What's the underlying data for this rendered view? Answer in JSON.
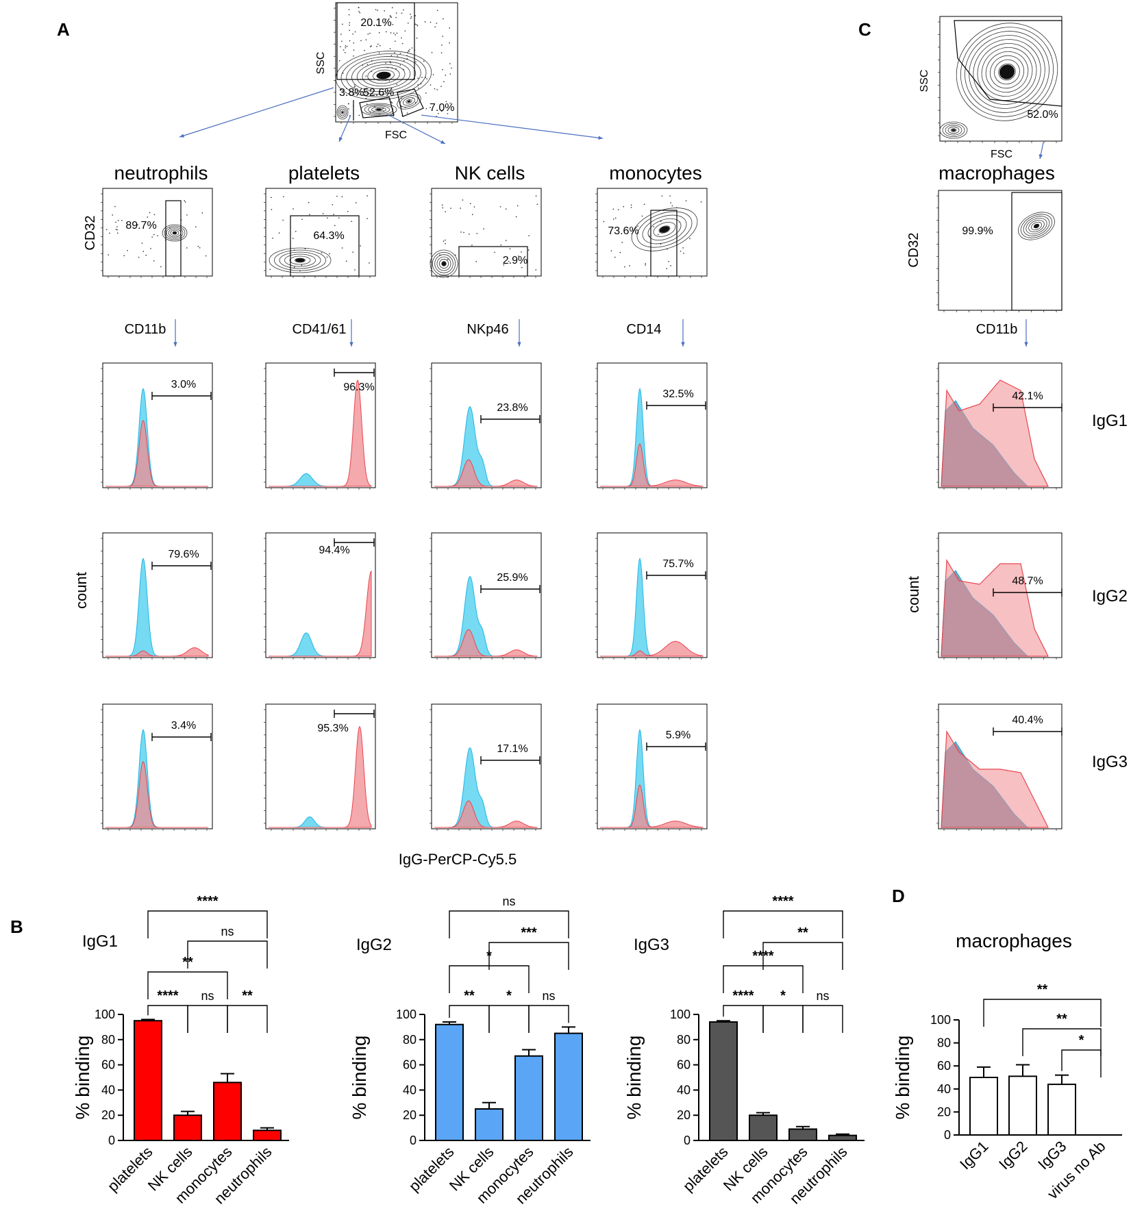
{
  "panel_letters": [
    "A",
    "B",
    "C",
    "D"
  ],
  "colors": {
    "control": "#5ed3f0",
    "sample": "#f08c92",
    "overlap": "#7a8fa8",
    "arrow": "#4a6fc1",
    "igg1_bar": "#ff0000",
    "igg2_bar": "#5aa5f5",
    "igg3_bar": "#555555"
  },
  "panelA": {
    "gate_plot": {
      "xlabel": "FSC",
      "ylabel": "SSC",
      "gates": [
        "20.1%",
        "3.8%",
        "52.6%",
        "7.0%"
      ]
    },
    "populations": [
      {
        "name": "neutrophils",
        "marker": "CD11b",
        "ylabel": "CD32",
        "gate": "89.7%",
        "hist": [
          "3.0%",
          "79.6%",
          "3.4%"
        ]
      },
      {
        "name": "platelets",
        "marker": "CD41/61",
        "ylabel": "",
        "gate": "64.3%",
        "hist": [
          "96.3%",
          "94.4%",
          "95.3%"
        ]
      },
      {
        "name": "NK cells",
        "marker": "NKp46",
        "ylabel": "",
        "gate": "2.9%",
        "hist": [
          "23.8%",
          "25.9%",
          "17.1%"
        ]
      },
      {
        "name": "monocytes",
        "marker": "CD14",
        "ylabel": "",
        "gate": "73.6%",
        "hist": [
          "32.5%",
          "75.7%",
          "5.9%"
        ]
      }
    ],
    "count_label": "count",
    "xaxis_label": "IgG-PerCP-Cy5.5"
  },
  "panelC": {
    "gate_plot": {
      "xlabel": "FSC",
      "ylabel": "SSC",
      "gate": "52.0%"
    },
    "population": {
      "name": "macrophages",
      "marker": "CD11b",
      "ylabel": "CD32",
      "gate": "99.9%",
      "hist": [
        "42.1%",
        "48.7%",
        "40.4%"
      ]
    },
    "count_label": "count",
    "isotypes": [
      "IgG1",
      "IgG2",
      "IgG3"
    ]
  },
  "chart_data": [
    {
      "type": "bar",
      "title": "IgG1",
      "ylabel": "% binding",
      "ylim": [
        0,
        100
      ],
      "yticks": [
        "0",
        "20",
        "40",
        "60",
        "80",
        "100"
      ],
      "categories": [
        "platelets",
        "NK cells",
        "monocytes",
        "neutrophils"
      ],
      "values": [
        95,
        20,
        46,
        8
      ],
      "errors": [
        1,
        3,
        7,
        2
      ],
      "comparisons": [
        {
          "a": 0,
          "b": 1,
          "label": "****"
        },
        {
          "a": 1,
          "b": 2,
          "label": "ns"
        },
        {
          "a": 2,
          "b": 3,
          "label": "**"
        },
        {
          "a": 0,
          "b": 2,
          "label": "**"
        },
        {
          "a": 1,
          "b": 3,
          "label": "ns"
        },
        {
          "a": 0,
          "b": 3,
          "label": "****"
        }
      ]
    },
    {
      "type": "bar",
      "title": "IgG2",
      "ylabel": "% binding",
      "ylim": [
        0,
        100
      ],
      "yticks": [
        "0",
        "20",
        "40",
        "60",
        "80",
        "100"
      ],
      "categories": [
        "platelets",
        "NK cells",
        "monocytes",
        "neutrophils"
      ],
      "values": [
        92,
        25,
        67,
        85
      ],
      "errors": [
        2,
        5,
        5,
        5
      ],
      "comparisons": [
        {
          "a": 0,
          "b": 1,
          "label": "**"
        },
        {
          "a": 1,
          "b": 2,
          "label": "*"
        },
        {
          "a": 2,
          "b": 3,
          "label": "ns"
        },
        {
          "a": 0,
          "b": 2,
          "label": "*"
        },
        {
          "a": 1,
          "b": 3,
          "label": "***"
        },
        {
          "a": 0,
          "b": 3,
          "label": "ns"
        }
      ]
    },
    {
      "type": "bar",
      "title": "IgG3",
      "ylabel": "% binding",
      "ylim": [
        0,
        100
      ],
      "yticks": [
        "0",
        "20",
        "40",
        "60",
        "80",
        "100"
      ],
      "categories": [
        "platelets",
        "NK cells",
        "monocytes",
        "neutrophils"
      ],
      "values": [
        94,
        20,
        9,
        4
      ],
      "errors": [
        1,
        2,
        2,
        1
      ],
      "comparisons": [
        {
          "a": 0,
          "b": 1,
          "label": "****"
        },
        {
          "a": 1,
          "b": 2,
          "label": "*"
        },
        {
          "a": 2,
          "b": 3,
          "label": "ns"
        },
        {
          "a": 0,
          "b": 2,
          "label": "****"
        },
        {
          "a": 1,
          "b": 3,
          "label": "**"
        },
        {
          "a": 0,
          "b": 3,
          "label": "****"
        }
      ]
    },
    {
      "type": "bar",
      "title": "macrophages",
      "ylabel": "% binding",
      "ylim": [
        0,
        100
      ],
      "yticks": [
        "0",
        "20",
        "40",
        "60",
        "80",
        "100"
      ],
      "categories": [
        "IgG1",
        "IgG2",
        "IgG3",
        "virus no Ab"
      ],
      "values": [
        50,
        51,
        44,
        0
      ],
      "errors": [
        9,
        10,
        8,
        0
      ],
      "comparisons": [
        {
          "a": 2,
          "b": 3,
          "label": "*"
        },
        {
          "a": 1,
          "b": 3,
          "label": "**"
        },
        {
          "a": 0,
          "b": 3,
          "label": "**"
        }
      ]
    }
  ]
}
